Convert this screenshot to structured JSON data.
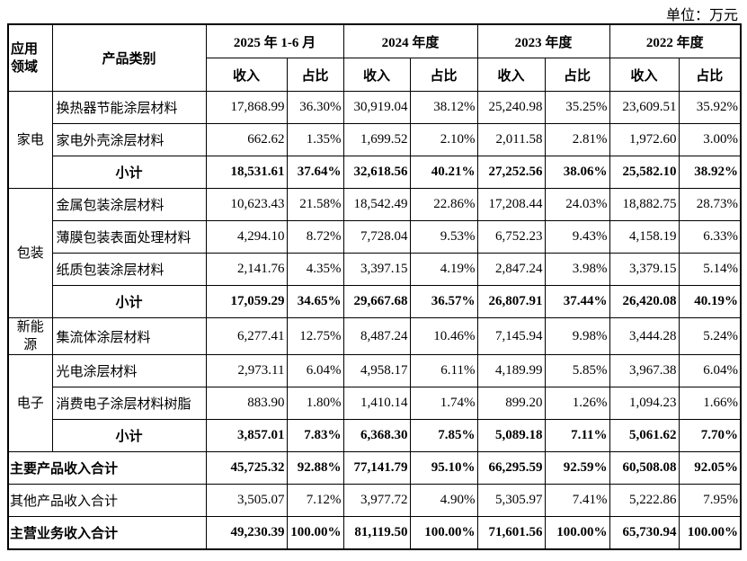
{
  "unit": "单位：万元",
  "header": {
    "domain": "应用领域",
    "category": "产品类别",
    "periods": [
      "2025 年 1-6 月",
      "2024 年度",
      "2023 年度",
      "2022 年度"
    ],
    "sub": [
      "收入",
      "占比"
    ]
  },
  "groups": [
    {
      "domain": "家电",
      "rows": [
        {
          "category": "换热器节能涂层材料",
          "cells": [
            "17,868.99",
            "36.30%",
            "30,919.04",
            "38.12%",
            "25,240.98",
            "35.25%",
            "23,609.51",
            "35.92%"
          ]
        },
        {
          "category": "家电外壳涂层材料",
          "cells": [
            "662.62",
            "1.35%",
            "1,699.52",
            "2.10%",
            "2,011.58",
            "2.81%",
            "1,972.60",
            "3.00%"
          ]
        }
      ],
      "subtotal": {
        "label": "小计",
        "cells": [
          "18,531.61",
          "37.64%",
          "32,618.56",
          "40.21%",
          "27,252.56",
          "38.06%",
          "25,582.10",
          "38.92%"
        ]
      }
    },
    {
      "domain": "包装",
      "rows": [
        {
          "category": "金属包装涂层材料",
          "cells": [
            "10,623.43",
            "21.58%",
            "18,542.49",
            "22.86%",
            "17,208.44",
            "24.03%",
            "18,882.75",
            "28.73%"
          ]
        },
        {
          "category": "薄膜包装表面处理材料",
          "cells": [
            "4,294.10",
            "8.72%",
            "7,728.04",
            "9.53%",
            "6,752.23",
            "9.43%",
            "4,158.19",
            "6.33%"
          ]
        },
        {
          "category": "纸质包装涂层材料",
          "cells": [
            "2,141.76",
            "4.35%",
            "3,397.15",
            "4.19%",
            "2,847.24",
            "3.98%",
            "3,379.15",
            "5.14%"
          ]
        }
      ],
      "subtotal": {
        "label": "小计",
        "cells": [
          "17,059.29",
          "34.65%",
          "29,667.68",
          "36.57%",
          "26,807.91",
          "37.44%",
          "26,420.08",
          "40.19%"
        ]
      }
    },
    {
      "domain": "新能源",
      "rows": [
        {
          "category": "集流体涂层材料",
          "cells": [
            "6,277.41",
            "12.75%",
            "8,487.24",
            "10.46%",
            "7,145.94",
            "9.98%",
            "3,444.28",
            "5.24%"
          ]
        }
      ]
    },
    {
      "domain": "电子",
      "rows": [
        {
          "category": "光电涂层材料",
          "cells": [
            "2,973.11",
            "6.04%",
            "4,958.17",
            "6.11%",
            "4,189.99",
            "5.85%",
            "3,967.38",
            "6.04%"
          ]
        },
        {
          "category": "消费电子涂层材料树脂",
          "cells": [
            "883.90",
            "1.80%",
            "1,410.14",
            "1.74%",
            "899.20",
            "1.26%",
            "1,094.23",
            "1.66%"
          ]
        }
      ],
      "subtotal": {
        "label": "小计",
        "cells": [
          "3,857.01",
          "7.83%",
          "6,368.30",
          "7.85%",
          "5,089.18",
          "7.11%",
          "5,061.62",
          "7.70%"
        ]
      }
    }
  ],
  "totals": [
    {
      "label": "主要产品收入合计",
      "cells": [
        "45,725.32",
        "92.88%",
        "77,141.79",
        "95.10%",
        "66,295.59",
        "92.59%",
        "60,508.08",
        "92.05%"
      ]
    },
    {
      "label": "其他产品收入合计",
      "cells": [
        "3,505.07",
        "7.12%",
        "3,977.72",
        "4.90%",
        "5,305.97",
        "7.41%",
        "5,222.86",
        "7.95%"
      ]
    },
    {
      "label": "主营业务收入合计",
      "cells": [
        "49,230.39",
        "100.00%",
        "81,119.50",
        "100.00%",
        "71,601.56",
        "100.00%",
        "65,730.94",
        "100.00%"
      ]
    }
  ]
}
